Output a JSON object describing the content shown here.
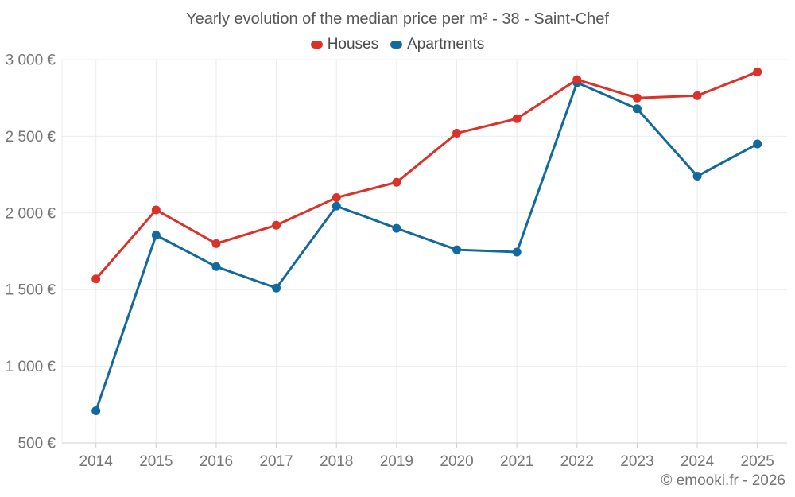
{
  "footer": {
    "copyright": "© emooki.fr - 2026"
  },
  "chart_data": {
    "type": "line",
    "title": "Yearly evolution of the median price per m² - 38 - Saint-Chef",
    "categories": [
      "2014",
      "2015",
      "2016",
      "2017",
      "2018",
      "2019",
      "2020",
      "2021",
      "2022",
      "2023",
      "2024",
      "2025"
    ],
    "series": [
      {
        "name": "Houses",
        "color": "#dc3128",
        "values": [
          1570,
          2020,
          1800,
          1920,
          2100,
          2200,
          2520,
          2615,
          2870,
          2750,
          2765,
          2920
        ]
      },
      {
        "name": "Apartments",
        "color": "#12699e",
        "values": [
          710,
          1855,
          1650,
          1510,
          2045,
          1900,
          1760,
          1745,
          2850,
          2680,
          2240,
          2450
        ]
      }
    ],
    "xlabel": "",
    "ylabel": "",
    "ylim": [
      500,
      3000
    ],
    "ytick_step": 500,
    "ytick_labels": [
      "500 €",
      "1 000 €",
      "1 500 €",
      "2 000 €",
      "2 500 €",
      "3 000 €"
    ],
    "grid": true,
    "legend_position": "top",
    "colors": {
      "grid": "#ececec",
      "axis": "#cfcfcf",
      "labels": "#757575",
      "title": "#575757",
      "legend_text": "#4a4a4a"
    }
  }
}
